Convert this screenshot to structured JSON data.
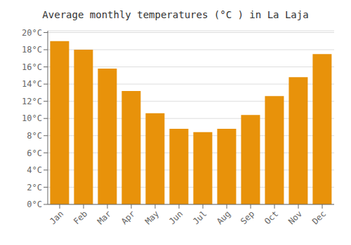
{
  "chart_data": {
    "type": "bar",
    "title": "Average monthly temperatures (°C ) in La Laja",
    "categories": [
      "Jan",
      "Feb",
      "Mar",
      "Apr",
      "May",
      "Jun",
      "Jul",
      "Aug",
      "Sep",
      "Oct",
      "Nov",
      "Dec"
    ],
    "values": [
      19.0,
      18.0,
      15.8,
      13.2,
      10.6,
      8.8,
      8.4,
      8.8,
      10.4,
      12.6,
      14.8,
      17.5
    ],
    "color": "#E8920A",
    "ylim": [
      0,
      20.2
    ],
    "yticks": [
      {
        "value": 0,
        "label": "0°C"
      },
      {
        "value": 2,
        "label": "2°C"
      },
      {
        "value": 4,
        "label": "4°C"
      },
      {
        "value": 6,
        "label": "6°C"
      },
      {
        "value": 8,
        "label": "8°C"
      },
      {
        "value": 10,
        "label": "10°C"
      },
      {
        "value": 12,
        "label": "12°C"
      },
      {
        "value": 14,
        "label": "14°C"
      },
      {
        "value": 16,
        "label": "16°C"
      },
      {
        "value": 18,
        "label": "18°C"
      },
      {
        "value": 20,
        "label": "20°C"
      }
    ],
    "grid": true
  }
}
